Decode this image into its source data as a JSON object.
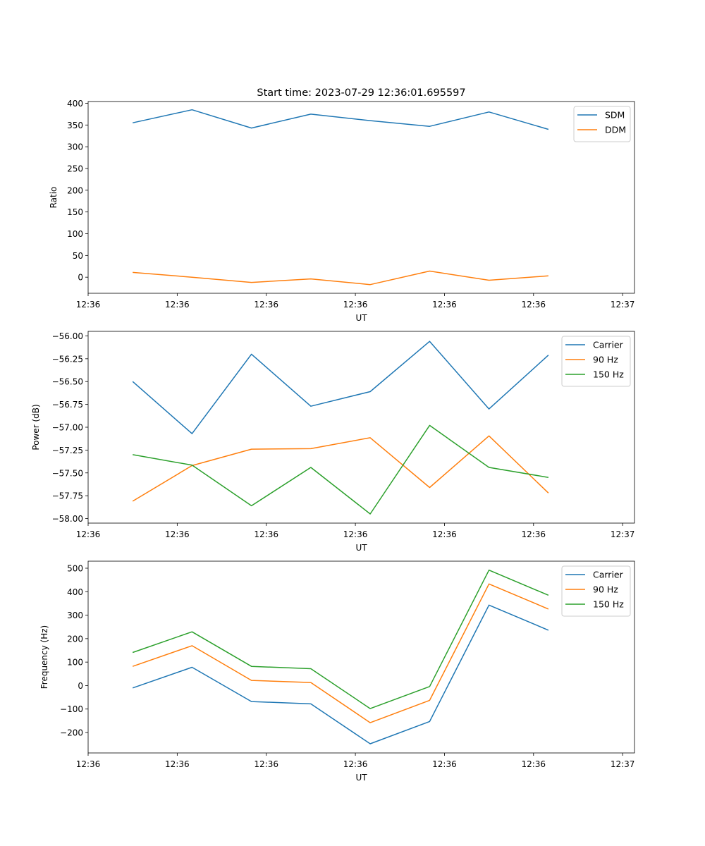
{
  "chart_data": [
    {
      "type": "line",
      "title": "Start time: 2023-07-29 12:36:01.695597",
      "xlabel": "UT",
      "ylabel": "Ratio",
      "xlim": [
        0,
        9.2
      ],
      "x": [
        0.75,
        1.75,
        2.75,
        3.75,
        4.75,
        5.75,
        6.75,
        7.75
      ],
      "xticks": [
        0.0,
        1.5,
        3.0,
        4.5,
        6.0,
        7.5,
        9.0
      ],
      "xtick_labels": [
        "12:36",
        "12:36",
        "12:36",
        "12:36",
        "12:36",
        "12:36",
        "12:37"
      ],
      "ylim": [
        -37,
        404
      ],
      "yticks": [
        0,
        50,
        100,
        150,
        200,
        250,
        300,
        350,
        400
      ],
      "ytick_labels": [
        "0",
        "50",
        "100",
        "150",
        "200",
        "250",
        "300",
        "350",
        "400"
      ],
      "legend_position": "top-right",
      "series": [
        {
          "name": "SDM",
          "color": "#1f77b4",
          "values": [
            355,
            385,
            343,
            375,
            360,
            347,
            380,
            340
          ]
        },
        {
          "name": "DDM",
          "color": "#ff7f0e",
          "values": [
            11,
            0,
            -12,
            -4,
            -17,
            14,
            -7,
            3
          ]
        }
      ]
    },
    {
      "type": "line",
      "title": "",
      "xlabel": "UT",
      "ylabel": "Power (dB)",
      "xlim": [
        0,
        9.2
      ],
      "x": [
        0.75,
        1.75,
        2.75,
        3.75,
        4.75,
        5.75,
        6.75,
        7.75
      ],
      "xticks": [
        0.0,
        1.5,
        3.0,
        4.5,
        6.0,
        7.5,
        9.0
      ],
      "xtick_labels": [
        "12:36",
        "12:36",
        "12:36",
        "12:36",
        "12:36",
        "12:36",
        "12:37"
      ],
      "ylim": [
        -58.05,
        -55.95
      ],
      "yticks": [
        -56.0,
        -56.25,
        -56.5,
        -56.75,
        -57.0,
        -57.25,
        -57.5,
        -57.75,
        -58.0
      ],
      "ytick_labels": [
        "−56.00",
        "−56.25",
        "−56.50",
        "−56.75",
        "−57.00",
        "−57.25",
        "−57.50",
        "−57.75",
        "−58.00"
      ],
      "legend_position": "top-right",
      "series": [
        {
          "name": "Carrier",
          "color": "#1f77b4",
          "values": [
            -56.5,
            -57.07,
            -56.2,
            -56.77,
            -56.61,
            -56.06,
            -56.8,
            -56.21
          ]
        },
        {
          "name": "90 Hz",
          "color": "#ff7f0e",
          "values": [
            -57.81,
            -57.42,
            -57.24,
            -57.235,
            -57.115,
            -57.66,
            -57.095,
            -57.72
          ]
        },
        {
          "name": "150 Hz",
          "color": "#2ca02c",
          "values": [
            -57.3,
            -57.415,
            -57.86,
            -57.44,
            -57.95,
            -56.98,
            -57.44,
            -57.55
          ]
        }
      ]
    },
    {
      "type": "line",
      "title": "",
      "xlabel": "UT",
      "ylabel": "Frequency (Hz)",
      "xlim": [
        0,
        9.2
      ],
      "x": [
        0.75,
        1.75,
        2.75,
        3.75,
        4.75,
        5.75,
        6.75,
        7.75
      ],
      "xticks": [
        0.0,
        1.5,
        3.0,
        4.5,
        6.0,
        7.5,
        9.0
      ],
      "xtick_labels": [
        "12:36",
        "12:36",
        "12:36",
        "12:36",
        "12:36",
        "12:36",
        "12:37"
      ],
      "ylim": [
        -287,
        530
      ],
      "yticks": [
        -200,
        -100,
        0,
        100,
        200,
        300,
        400,
        500
      ],
      "ytick_labels": [
        "−200",
        "−100",
        "0",
        "100",
        "200",
        "300",
        "400",
        "500"
      ],
      "legend_position": "top-right",
      "series": [
        {
          "name": "Carrier",
          "color": "#1f77b4",
          "values": [
            -10,
            78,
            -68,
            -78,
            -248,
            -153,
            343,
            236
          ]
        },
        {
          "name": "90 Hz",
          "color": "#ff7f0e",
          "values": [
            82,
            170,
            22,
            13,
            -158,
            -63,
            433,
            326
          ]
        },
        {
          "name": "150 Hz",
          "color": "#2ca02c",
          "values": [
            141,
            229,
            82,
            72,
            -98,
            -4,
            492,
            385
          ]
        }
      ]
    }
  ]
}
